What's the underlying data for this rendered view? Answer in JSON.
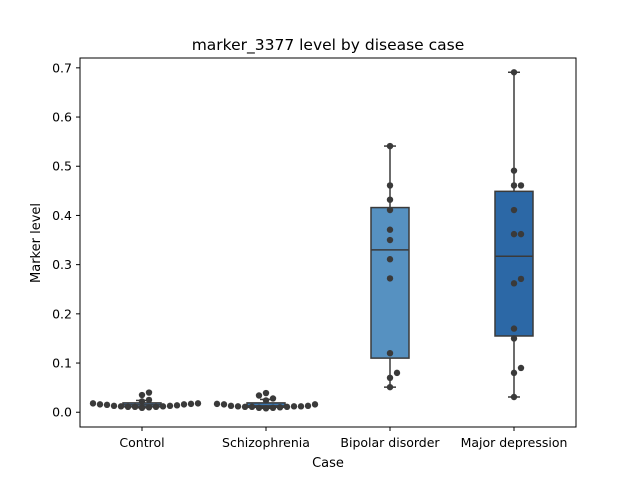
{
  "chart_data": {
    "type": "box",
    "title": "marker_3377 level by disease case",
    "xlabel": "Case",
    "ylabel": "Marker level",
    "ylim": [
      -0.03,
      0.72
    ],
    "yticks": [
      0.0,
      0.1,
      0.2,
      0.3,
      0.4,
      0.5,
      0.6,
      0.7
    ],
    "ytick_labels": [
      "0.0",
      "0.1",
      "0.2",
      "0.3",
      "0.4",
      "0.5",
      "0.6",
      "0.7"
    ],
    "categories": [
      "Control",
      "Schizophrenia",
      "Bipolar disorder",
      "Major depression"
    ],
    "grid": false,
    "colors": {
      "box_fill": [
        "#4a7fb5",
        "#3c77b0",
        "#5691c1",
        "#2c68a6"
      ],
      "outline": "#3a3a3a",
      "points": "#3a3a3a"
    },
    "boxes": [
      {
        "category": "Control",
        "whisker_low": 0.009,
        "q1": 0.011,
        "median": 0.015,
        "q3": 0.019,
        "whisker_high": 0.024
      },
      {
        "category": "Schizophrenia",
        "whisker_low": 0.008,
        "q1": 0.01,
        "median": 0.013,
        "q3": 0.019,
        "whisker_high": 0.026
      },
      {
        "category": "Bipolar disorder",
        "whisker_low": 0.051,
        "q1": 0.11,
        "median": 0.33,
        "q3": 0.416,
        "whisker_high": 0.541
      },
      {
        "category": "Major depression",
        "whisker_low": 0.031,
        "q1": 0.155,
        "median": 0.317,
        "q3": 0.449,
        "whisker_high": 0.691
      }
    ],
    "points": [
      [
        0.018,
        0.017,
        0.013,
        0.011,
        0.015,
        0.022,
        0.012,
        0.025,
        0.018,
        0.011,
        0.01,
        0.014,
        0.013,
        0.016,
        0.009,
        0.012,
        0.011,
        0.016,
        0.035,
        0.04
      ],
      [
        0.012,
        0.012,
        0.011,
        0.009,
        0.028,
        0.013,
        0.009,
        0.024,
        0.034,
        0.039,
        0.011,
        0.013,
        0.01,
        0.017,
        0.008,
        0.012,
        0.016,
        0.011,
        0.016
      ],
      [
        0.541,
        0.461,
        0.432,
        0.411,
        0.371,
        0.35,
        0.311,
        0.272,
        0.12,
        0.08,
        0.07,
        0.051
      ],
      [
        0.691,
        0.491,
        0.461,
        0.461,
        0.411,
        0.362,
        0.362,
        0.271,
        0.262,
        0.17,
        0.15,
        0.09,
        0.08,
        0.031
      ]
    ]
  }
}
